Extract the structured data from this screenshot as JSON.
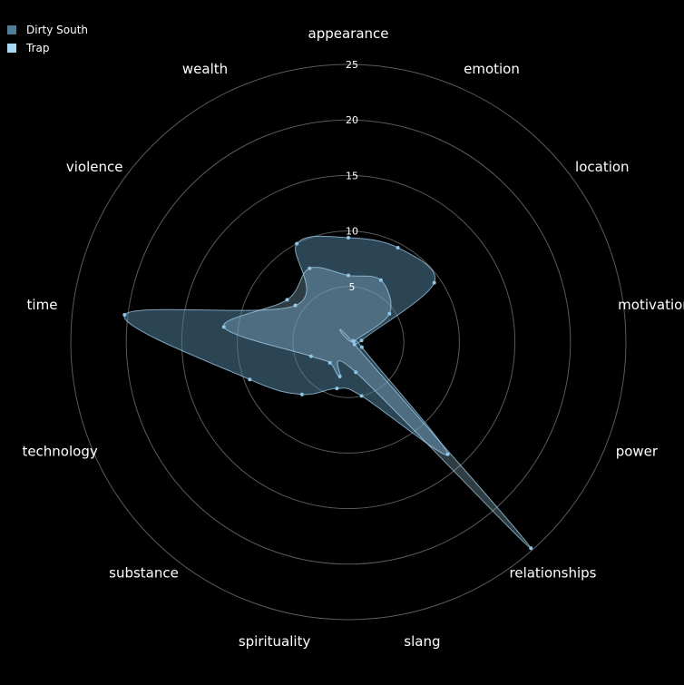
{
  "chart_data": {
    "type": "radar",
    "axes": [
      "appearance",
      "emotion",
      "location",
      "motivation",
      "power",
      "relationships",
      "slang",
      "spirituality",
      "substance",
      "technology",
      "time",
      "violence",
      "wealth"
    ],
    "r_ticks": [
      "5",
      "10",
      "15",
      "20",
      "25"
    ],
    "r_tick_values": [
      5,
      10,
      15,
      20,
      25
    ],
    "r_max": 25,
    "legend_position": "top-left",
    "series": [
      {
        "name": "Dirty South",
        "color": "#4e7d99",
        "values": [
          9.4,
          9.6,
          9.4,
          1.2,
          1.3,
          13.5,
          5.0,
          4.3,
          6.3,
          9.5,
          20.3,
          5.8,
          10.0
        ]
      },
      {
        "name": "Trap",
        "color": "#a9d8f5",
        "values": [
          6.0,
          6.3,
          4.5,
          0.5,
          0.6,
          24.8,
          2.8,
          3.2,
          2.5,
          3.6,
          11.3,
          6.7,
          7.5
        ]
      }
    ]
  }
}
